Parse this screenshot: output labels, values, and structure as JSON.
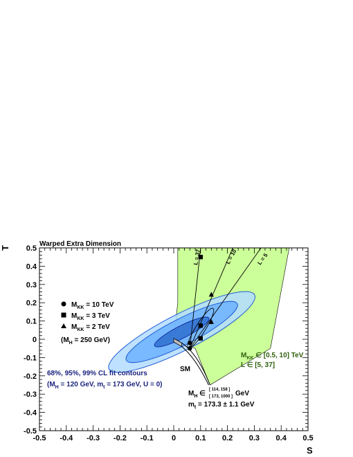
{
  "chart_data": {
    "type": "scatter",
    "title": "Warped Extra Dimension",
    "xlabel": "S",
    "ylabel": "T",
    "xlim": [
      -0.5,
      0.5
    ],
    "ylim": [
      -0.5,
      0.5
    ],
    "x_ticks": [
      "-0.5",
      "-0.4",
      "-0.3",
      "-0.2",
      "-0.1",
      "0",
      "0.1",
      "0.2",
      "0.3",
      "0.4",
      "0.5"
    ],
    "y_ticks": [
      "-0.5",
      "-0.4",
      "-0.3",
      "-0.2",
      "-0.1",
      "0",
      "0.1",
      "0.2",
      "0.3",
      "0.4",
      "0.5"
    ],
    "grid": false,
    "contours": {
      "label": "68%, 95%, 99% CL fit contours",
      "conditions": "(M_H = 120 GeV, m_t = 173 GeV, U = 0)",
      "center": [
        0.03,
        0.04
      ],
      "levels": [
        "68%",
        "95%",
        "99%"
      ]
    },
    "allowed_region": {
      "label_line1": "M_KK ∈ [0.5, 10] TeV",
      "label_line2": "L ∈ [5, 37]",
      "color": "#ccff99"
    },
    "sm_label": "SM",
    "sm_params_line1": "M_H ∈ [114, 158] / [173, 1000] GeV",
    "sm_params_line2": "m_t = 173.3 ± 1.1 GeV",
    "L_lines": [
      "L = 37",
      "L = 10",
      "L = 5"
    ],
    "markers": [
      {
        "label": "M_KK = 10 TeV",
        "shape": "circle"
      },
      {
        "label": "M_KK = 3 TeV",
        "shape": "square"
      },
      {
        "label": "M_KK = 2 TeV",
        "shape": "triangle"
      }
    ],
    "mh_note": "(M_H = 250 GeV)",
    "points": {
      "circle": [
        [
          0.06,
          -0.02
        ],
        [
          0.06,
          -0.05
        ]
      ],
      "square": [
        [
          0.1,
          0.45
        ],
        [
          0.1,
          0.075
        ],
        [
          0.1,
          0.005
        ]
      ],
      "triangle": [
        [
          0.14,
          0.245
        ],
        [
          0.14,
          0.095
        ]
      ]
    }
  },
  "text": {
    "title": "Warped Extra Dimension",
    "xlabel": "S",
    "ylabel": "T",
    "leg_m10_main": "M",
    "leg_m10_sub": "KK",
    "leg_m10_rest": " = 10 TeV",
    "leg_m3_main": "M",
    "leg_m3_sub": "KK",
    "leg_m3_rest": " =  3 TeV",
    "leg_m2_main": "M",
    "leg_m2_sub": "KK",
    "leg_m2_rest": " =  2 TeV",
    "mh_note_open": "(M",
    "mh_note_sub": "H",
    "mh_note_rest": " = 250 GeV)",
    "cl_line1": "68%, 95%, 99% CL fit contours",
    "cl_line2_a": "(M",
    "cl_line2_sub1": "H",
    "cl_line2_b": " = 120 GeV, m",
    "cl_line2_sub2": "t",
    "cl_line2_c": " = 173 GeV, U = 0)",
    "green_1_a": "M",
    "green_1_sub": "KK",
    "green_1_b": " ∈ [0.5, 10] TeV",
    "green_2": "L ∈ [5, 37]",
    "sm": "SM",
    "mh_a": "M",
    "mh_sub": "H",
    "mh_b": " ∈",
    "mh_frac_top": "[ 114, 158 ]",
    "mh_frac_bot": "[ 173, 1000 ]",
    "mh_c": " GeV",
    "mt_a": "m",
    "mt_sub": "t",
    "mt_b": " = 173.3 ± 1.1 GeV",
    "L37": "L = 37",
    "L10": "L = 10",
    "L5": "L = 5"
  }
}
